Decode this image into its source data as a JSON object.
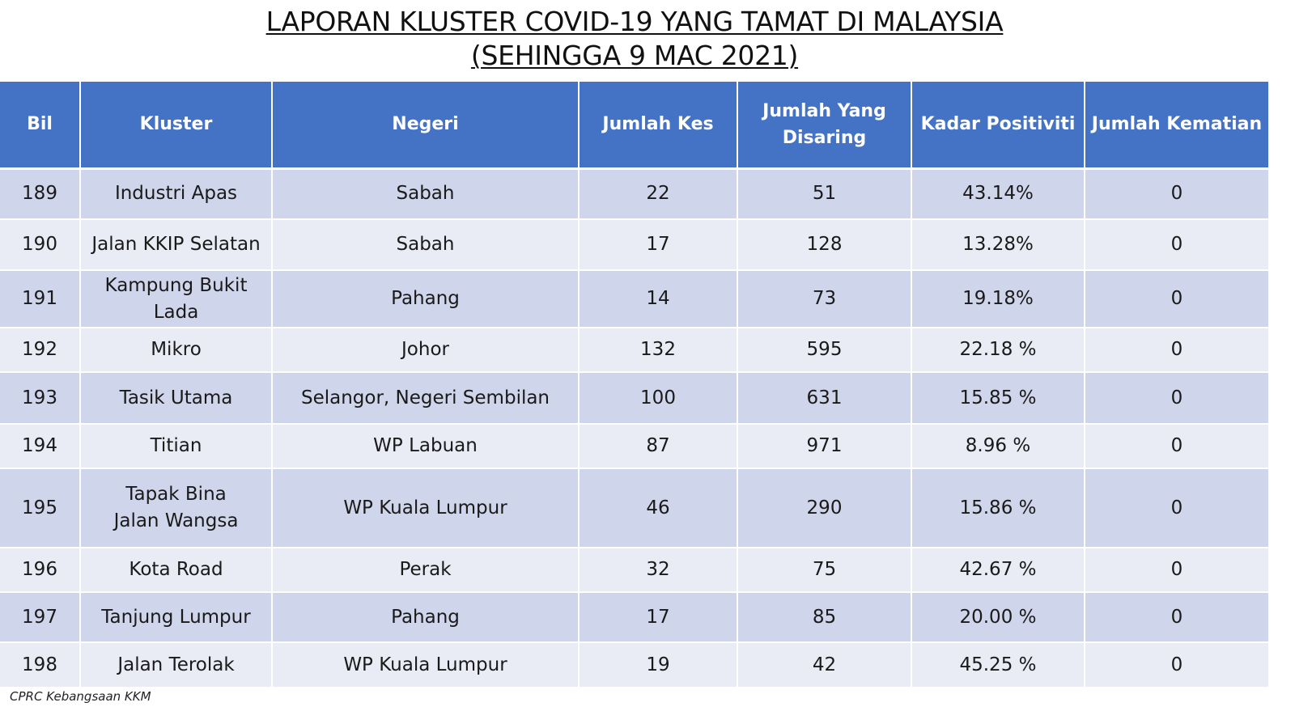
{
  "title": {
    "line1": "LAPORAN KLUSTER COVID-19 YANG TAMAT DI MALAYSIA",
    "line2": "(SEHINGGA  9 MAC 2021)"
  },
  "table": {
    "headers": [
      "Bil",
      "Kluster",
      "Negeri",
      "Jumlah Kes",
      "Jumlah Yang Disaring",
      "Kadar Positiviti",
      "Jumlah Kematian"
    ],
    "rows": [
      [
        "189",
        "Industri Apas",
        "Sabah",
        "22",
        "51",
        "43.14%",
        "0"
      ],
      [
        "190",
        "Jalan KKIP Selatan",
        "Sabah",
        "17",
        "128",
        "13.28%",
        "0"
      ],
      [
        "191",
        "Kampung Bukit Lada",
        "Pahang",
        "14",
        "73",
        "19.18%",
        "0"
      ],
      [
        "192",
        "Mikro",
        "Johor",
        "132",
        "595",
        "22.18 %",
        "0"
      ],
      [
        "193",
        "Tasik Utama",
        "Selangor, Negeri Sembilan",
        "100",
        "631",
        "15.85 %",
        "0"
      ],
      [
        "194",
        "Titian",
        "WP Labuan",
        "87",
        "971",
        "8.96 %",
        "0"
      ],
      [
        "195",
        "Tapak Bina Jalan Wangsa",
        "WP Kuala Lumpur",
        "46",
        "290",
        "15.86 %",
        "0"
      ],
      [
        "196",
        "Kota Road",
        "Perak",
        "32",
        "75",
        "42.67 %",
        "0"
      ],
      [
        "197",
        "Tanjung Lumpur",
        "Pahang",
        "17",
        "85",
        "20.00 %",
        "0"
      ],
      [
        "198",
        "Jalan Terolak",
        "WP Kuala Lumpur",
        "19",
        "42",
        "45.25 %",
        "0"
      ]
    ]
  },
  "credit": "CPRC Kebangsaan KKM",
  "colors": {
    "header_bg": "#4472c4",
    "row_odd": "#cfd5ea",
    "row_even": "#e9ebf5"
  }
}
